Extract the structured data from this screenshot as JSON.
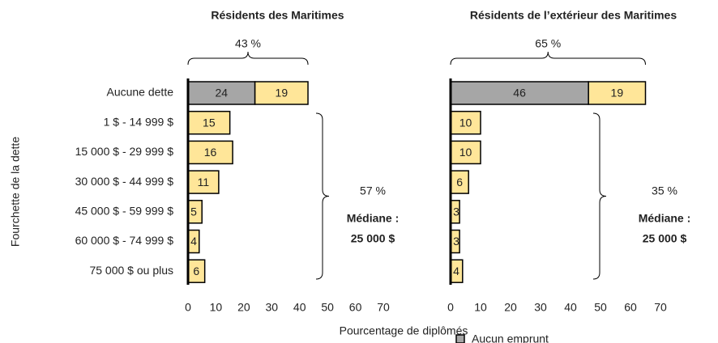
{
  "ylabel": "Fourchette de la dette",
  "xlabel": "Pourcentage de diplômés",
  "chart_data": [
    {
      "type": "bar",
      "orientation": "horizontal",
      "stacked": true,
      "title": "Résidents des Maritimes",
      "categories": [
        "Aucune dette",
        "1 $ - 14 999 $",
        "15 000 $ - 29 999 $",
        "30 000 $ - 44 999 $",
        "45 000 $ - 59 999 $",
        "60 000 $ - 74 999 $",
        "75 000 $ ou plus"
      ],
      "series": [
        {
          "name": "Aucun emprunt",
          "color": "#a6a6a6",
          "values": [
            24,
            null,
            null,
            null,
            null,
            null,
            null
          ]
        },
        {
          "color": "#ffe699",
          "values": [
            19,
            15,
            16,
            11,
            5,
            4,
            6
          ]
        }
      ],
      "xlim": [
        0,
        70
      ],
      "xticks": [
        0,
        10,
        20,
        30,
        40,
        50,
        60,
        70
      ],
      "top_bracket": "43 %",
      "bottom_bracket": "57 %",
      "median_label": "Médiane :",
      "median_value": "25 000 $"
    },
    {
      "type": "bar",
      "orientation": "horizontal",
      "stacked": true,
      "title": "Résidents de l’extérieur des Maritimes",
      "series": [
        {
          "name": "Aucun emprunt",
          "color": "#a6a6a6",
          "values": [
            46,
            null,
            null,
            null,
            null,
            null,
            null
          ]
        },
        {
          "color": "#ffe699",
          "values": [
            19,
            10,
            10,
            6,
            3,
            3,
            4
          ]
        }
      ],
      "xlim": [
        0,
        70
      ],
      "xticks": [
        0,
        10,
        20,
        30,
        40,
        50,
        60,
        70
      ],
      "top_bracket": "65 %",
      "bottom_bracket": "35 %",
      "median_label": "Médiane :",
      "median_value": "25 000 $"
    }
  ]
}
